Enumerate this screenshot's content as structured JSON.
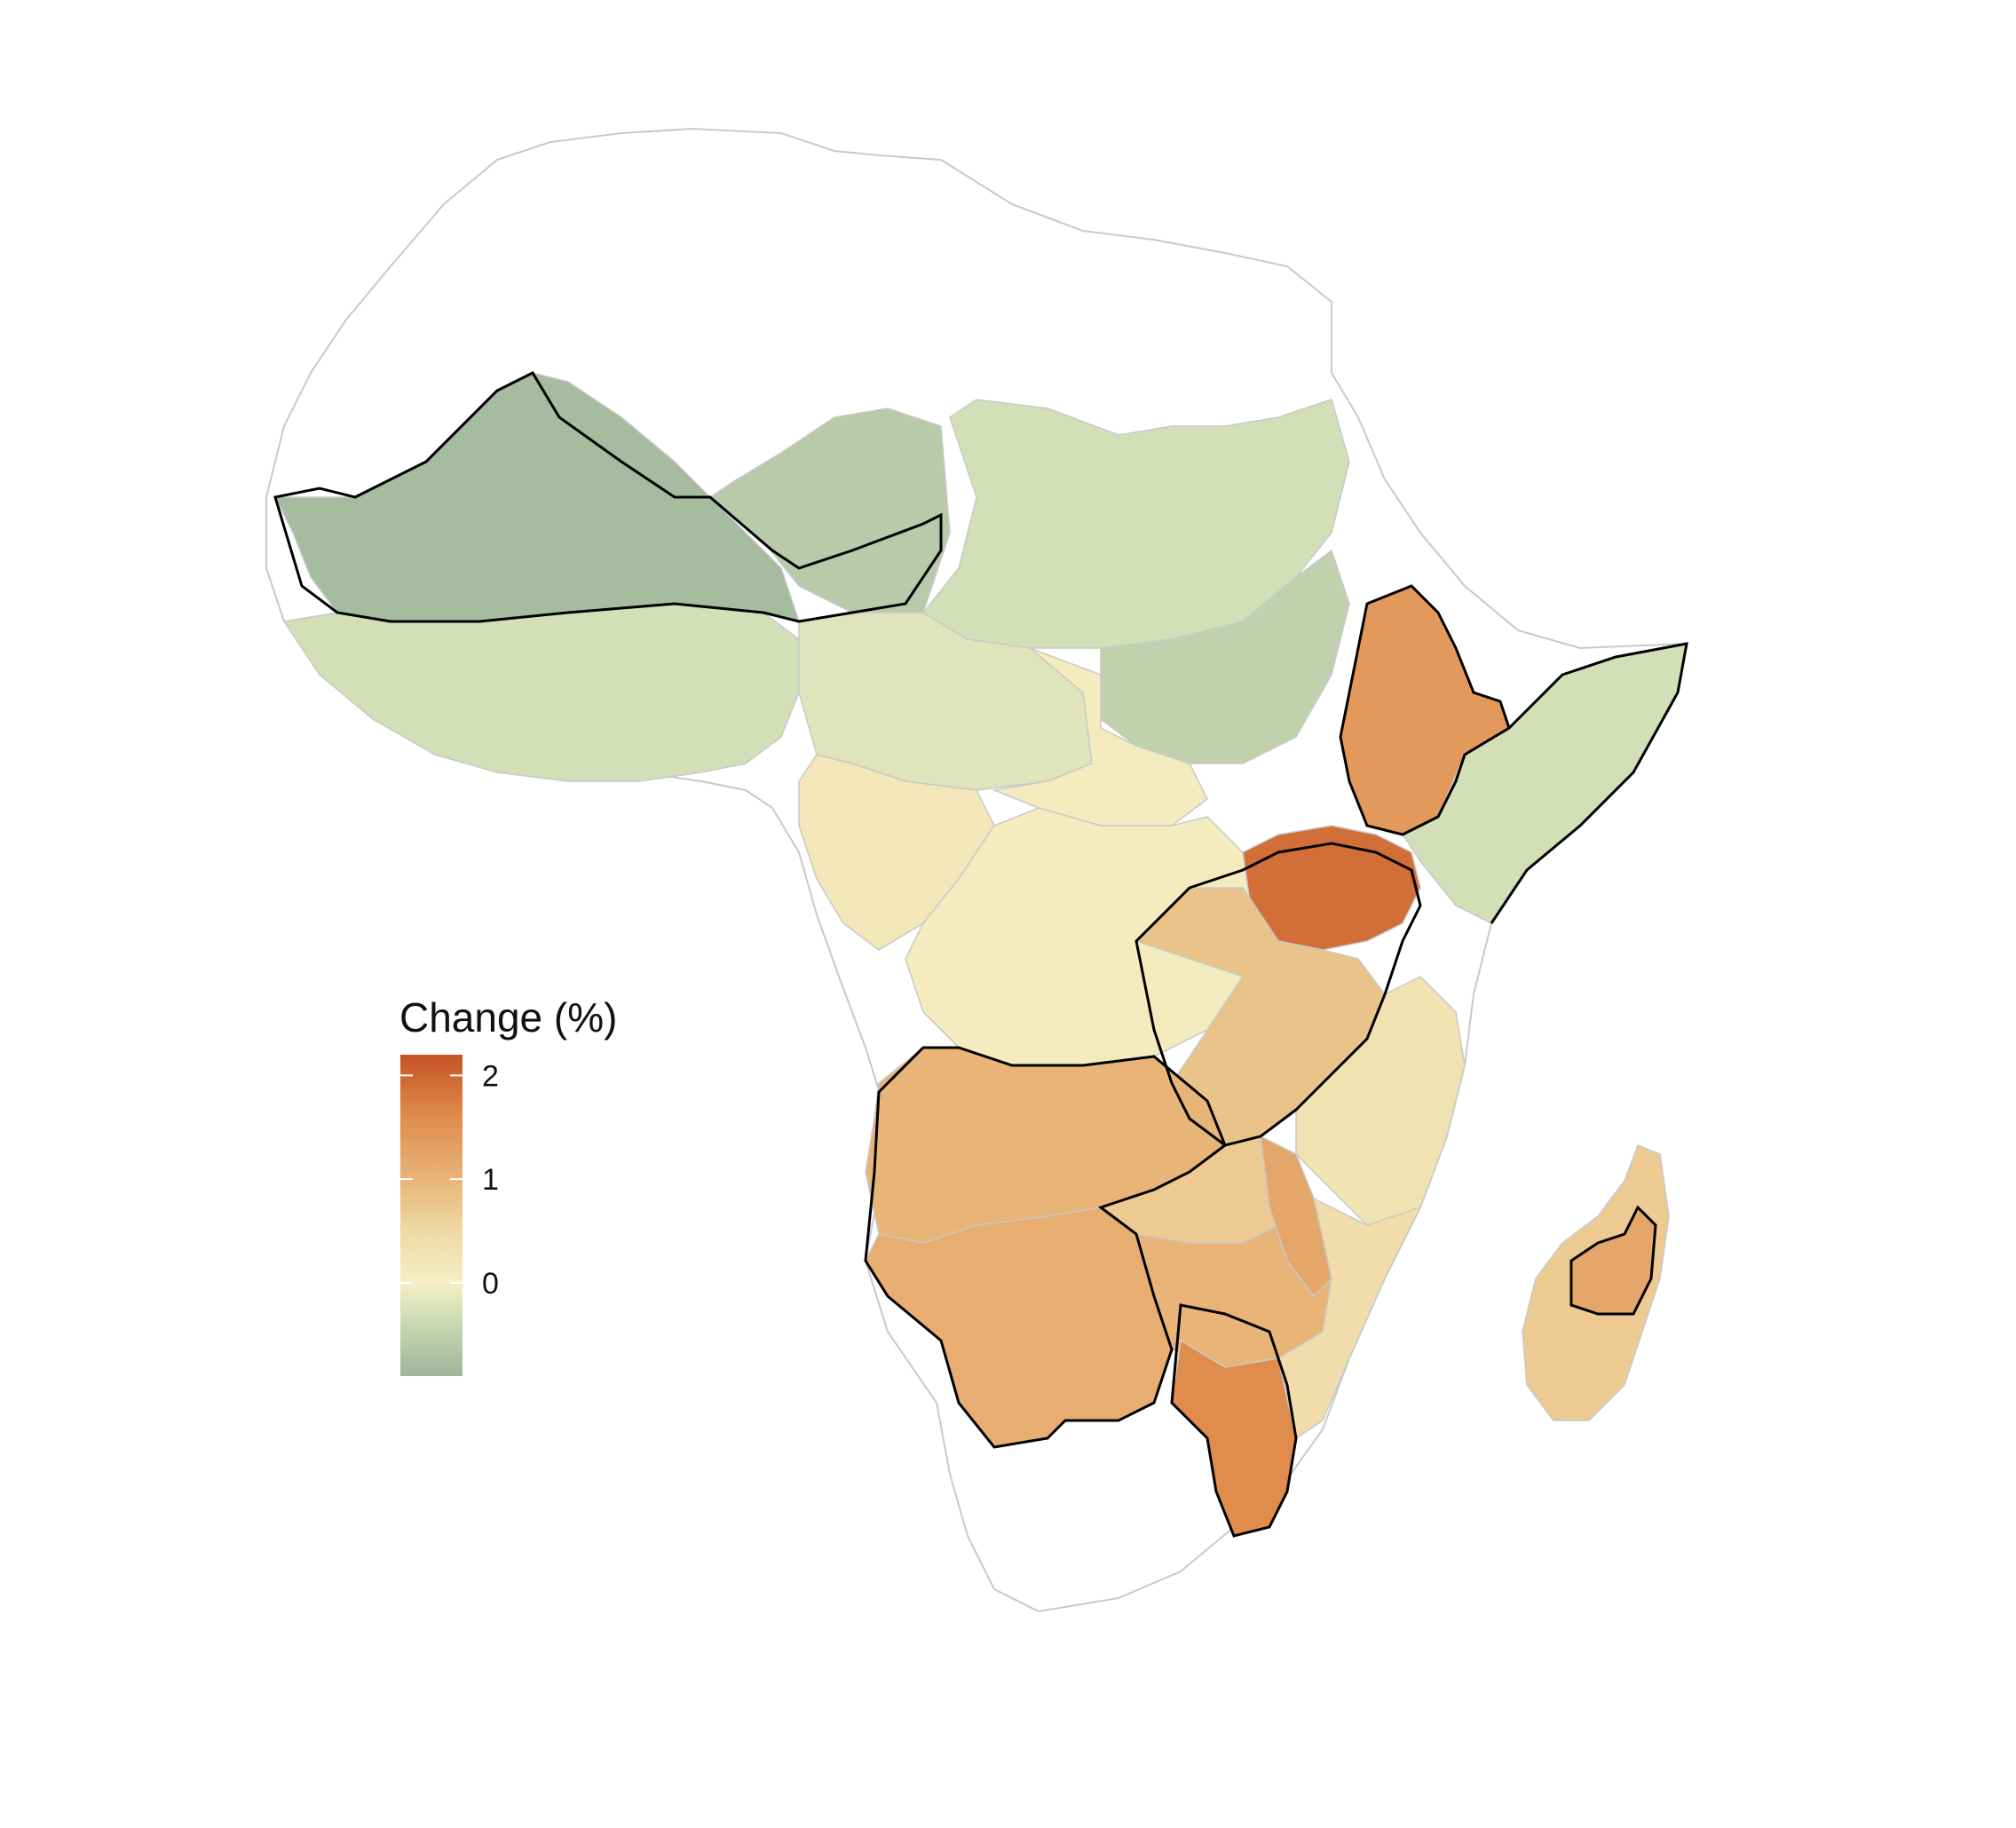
{
  "legend": {
    "title": "Change (%)",
    "ticks": [
      {
        "value": 2,
        "label": "2"
      },
      {
        "value": 1,
        "label": "1"
      },
      {
        "value": 0,
        "label": "0"
      }
    ],
    "range": [
      -0.9,
      2.2
    ],
    "color_stops": [
      {
        "value": -0.9,
        "color": "#9db59a"
      },
      {
        "value": -0.3,
        "color": "#d3dfb7"
      },
      {
        "value": 0.0,
        "color": "#f6efc6"
      },
      {
        "value": 0.5,
        "color": "#eed9a4"
      },
      {
        "value": 1.0,
        "color": "#e8b478"
      },
      {
        "value": 1.6,
        "color": "#df8c4c"
      },
      {
        "value": 2.2,
        "color": "#c55225"
      }
    ]
  },
  "colors": {
    "no_data": "#ffffff",
    "district_border": "#c9c9c9",
    "highlight_border": "#000000",
    "water": "#ffffff"
  },
  "regions": [
    {
      "id": "north-africa",
      "change": null
    },
    {
      "id": "sahel-west",
      "change": -0.8
    },
    {
      "id": "sahel-mali-niger",
      "change": -0.6
    },
    {
      "id": "chad-sudan-belt",
      "change": -0.3
    },
    {
      "id": "coastal-west-africa",
      "change": -0.3
    },
    {
      "id": "nigeria-central",
      "change": -0.2
    },
    {
      "id": "south-sudan-band",
      "change": -0.5
    },
    {
      "id": "central-african-republic",
      "change": 0.1
    },
    {
      "id": "congo-basin",
      "change": 0.1
    },
    {
      "id": "gabon-cameroon",
      "change": 0.2
    },
    {
      "id": "ethiopia-highlands",
      "change": 1.4
    },
    {
      "id": "horn-somalia",
      "change": -0.3
    },
    {
      "id": "east-africa-lakes",
      "change": 1.9
    },
    {
      "id": "tanzania-west",
      "change": 0.8
    },
    {
      "id": "tanzania-east",
      "change": 0.3
    },
    {
      "id": "angola-zambia",
      "change": 1.0
    },
    {
      "id": "zambia-north",
      "change": 0.7
    },
    {
      "id": "namibia-botswana",
      "change": 1.1
    },
    {
      "id": "zimbabwe-mozambique",
      "change": 1.0
    },
    {
      "id": "mozambique-coast",
      "change": 0.4
    },
    {
      "id": "malawi-corridor",
      "change": 1.2
    },
    {
      "id": "south-mozambique",
      "change": 1.6
    },
    {
      "id": "madagascar",
      "change": 0.7
    },
    {
      "id": "madagascar-central",
      "change": 1.2
    },
    {
      "id": "southern-africa",
      "change": null
    }
  ]
}
